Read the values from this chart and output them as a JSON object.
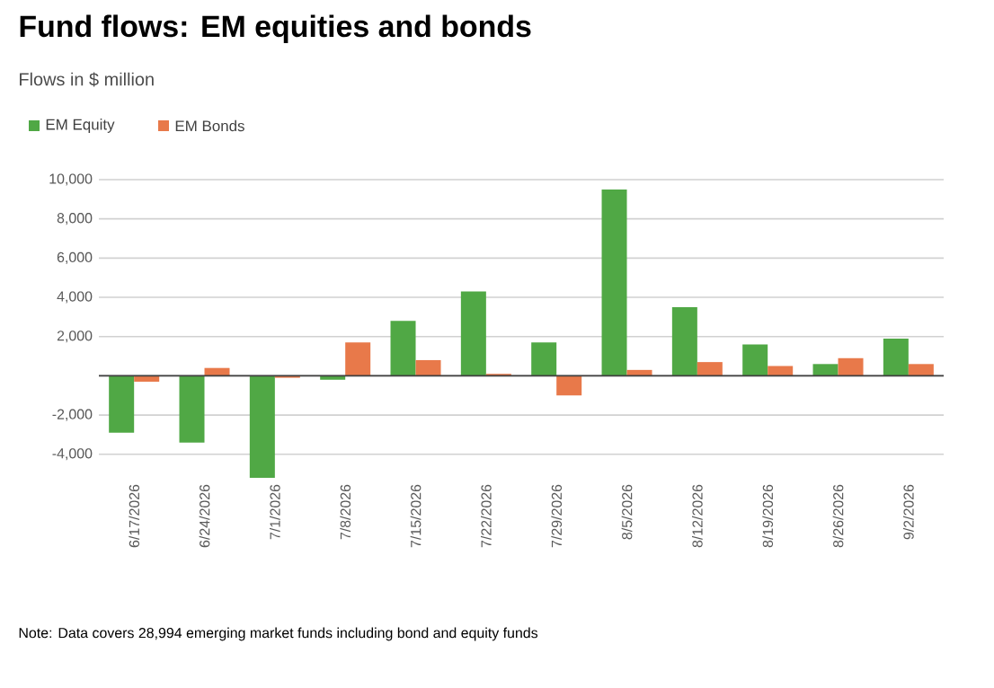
{
  "chart_data": {
    "type": "bar",
    "title": "Fund flows: EM equities and bonds",
    "subtitle": "Flows in $ million",
    "categories": [
      "6/17/2026",
      "6/24/2026",
      "7/1/2026",
      "7/8/2026",
      "7/15/2026",
      "7/22/2026",
      "7/29/2026",
      "8/5/2026",
      "8/12/2026",
      "8/19/2026",
      "8/26/2026",
      "9/2/2026"
    ],
    "series": [
      {
        "name": "EM Equity",
        "color": "#50a845",
        "values": [
          -2900,
          -3400,
          -5200,
          -200,
          2800,
          4300,
          1700,
          9500,
          3500,
          1600,
          600,
          1900
        ]
      },
      {
        "name": "EM Bonds",
        "color": "#e8794a",
        "values": [
          -300,
          400,
          -100,
          1700,
          800,
          100,
          -1000,
          300,
          700,
          500,
          900,
          600
        ]
      }
    ],
    "ylim": [
      -5200,
      10000
    ],
    "yticks": [
      {
        "value": -4000,
        "label": "-4,000"
      },
      {
        "value": -2000,
        "label": "-2,000"
      },
      {
        "value": 0,
        "label": null
      },
      {
        "value": 2000,
        "label": "2,000"
      },
      {
        "value": 4000,
        "label": "4,000"
      },
      {
        "value": 6000,
        "label": "6,000"
      },
      {
        "value": 8000,
        "label": "8,000"
      },
      {
        "value": 10000,
        "label": "10,000"
      }
    ],
    "grid": "y",
    "legend": "top left",
    "annotations": [
      "Note: Data covers 28,994 emerging market funds including bond and equity funds"
    ]
  }
}
